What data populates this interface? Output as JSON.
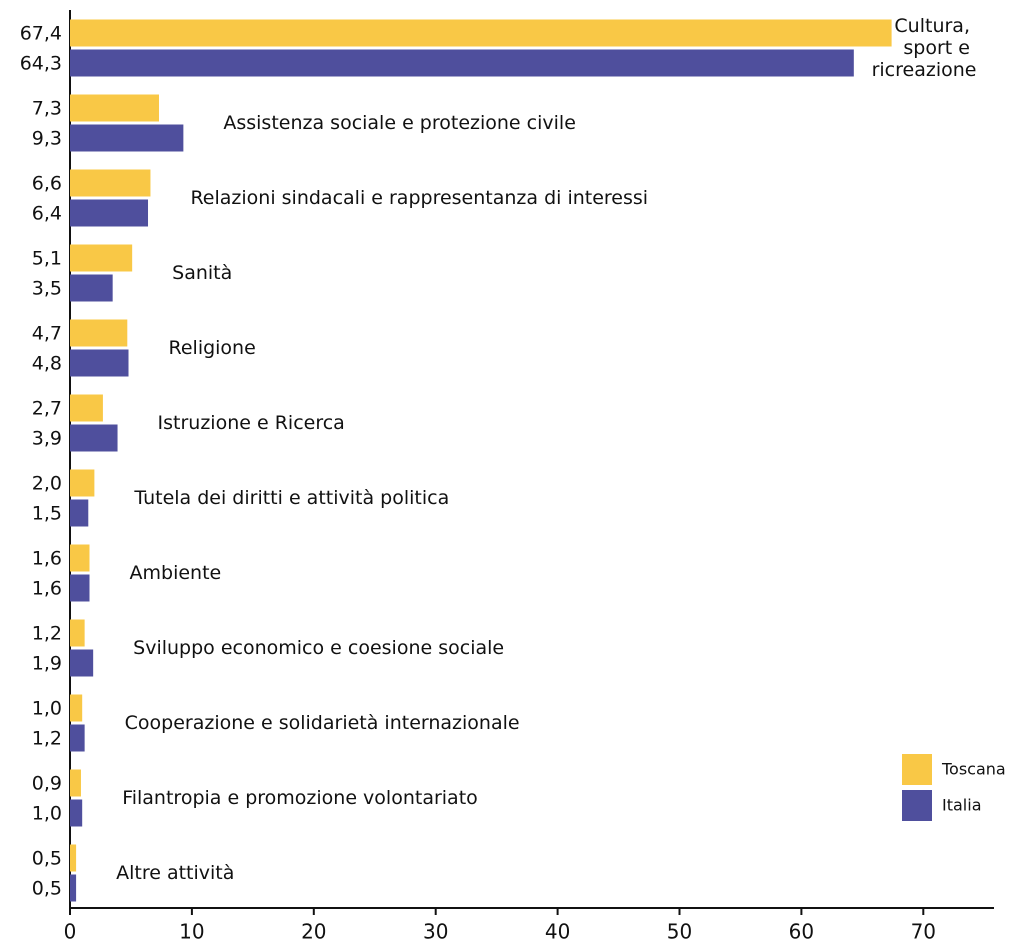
{
  "chart_data": {
    "type": "bar",
    "orientation": "horizontal",
    "categories": [
      "Cultura, sport e ricreazione",
      "Assistenza sociale e protezione civile",
      "Relazioni sindacali e rappresentanza di interessi",
      "Sanità",
      "Religione",
      "Istruzione e Ricerca",
      "Tutela dei diritti e attività politica",
      "Ambiente",
      "Sviluppo economico e coesione sociale",
      "Cooperazione e solidarietà internazionale",
      "Filantropia e promozione volontariato",
      "Altre attività"
    ],
    "series": [
      {
        "name": "Toscana",
        "color": "#f9c846",
        "values": [
          67.4,
          7.3,
          6.6,
          5.1,
          4.7,
          2.7,
          2.0,
          1.6,
          1.2,
          1.0,
          0.9,
          0.5
        ],
        "value_labels": [
          "67,4",
          "7,3",
          "6,6",
          "5,1",
          "4,7",
          "2,7",
          "2,0",
          "1,6",
          "1,2",
          "1,0",
          "0,9",
          "0,5"
        ]
      },
      {
        "name": "Italia",
        "color": "#4f4f9d",
        "values": [
          64.3,
          9.3,
          6.4,
          3.5,
          4.8,
          3.9,
          1.5,
          1.6,
          1.9,
          1.2,
          1.0,
          0.5
        ],
        "value_labels": [
          "64,3",
          "9,3",
          "6,4",
          "3,5",
          "4,8",
          "3,9",
          "1,5",
          "1,6",
          "1,9",
          "1,2",
          "1,0",
          "0,5"
        ]
      }
    ],
    "xlim": [
      0,
      76
    ],
    "xticks": [
      0,
      10,
      20,
      30,
      40,
      50,
      60,
      70
    ],
    "legend": "lower right"
  }
}
